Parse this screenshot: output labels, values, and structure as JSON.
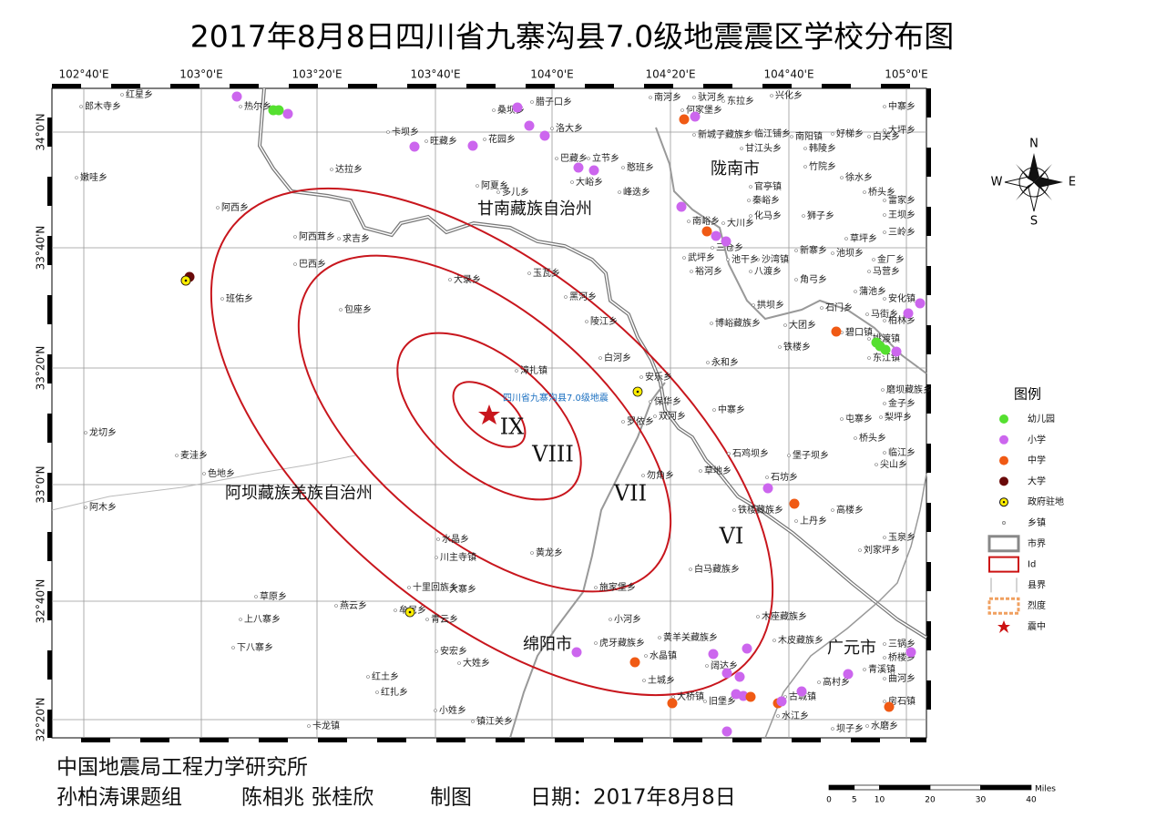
{
  "title": "2017年8月8日四川省九寨沟县7.0级地震震区学校分布图",
  "graticule": {
    "longitudes": [
      "102°40'E",
      "103°0'E",
      "103°20'E",
      "103°40'E",
      "104°0'E",
      "104°20'E",
      "104°40'E",
      "105°0'E"
    ],
    "latitudes": [
      "34°0'N",
      "33°40'N",
      "33°20'N",
      "33°0'N",
      "32°40'N",
      "32°20'N"
    ]
  },
  "regions": [
    "甘南藏族自治州",
    "陇南市",
    "阿坝藏族羌族自治州",
    "绵阳市",
    "广元市"
  ],
  "epicenter_label": "四川省九寨沟县7.0级地震",
  "intensity_labels": [
    "IX",
    "VIII",
    "VII",
    "VI"
  ],
  "towns": [
    "郎木寺乡",
    "红星乡",
    "热尔乡",
    "卡坝乡",
    "旺藏乡",
    "桑坝乡",
    "腊子口乡",
    "花园乡",
    "洛大乡",
    "巴藏乡",
    "立节乡",
    "憨班乡",
    "大峪乡",
    "达拉乡",
    "阿夏乡",
    "多儿乡",
    "峰迭乡",
    "南河乡",
    "何家堡乡",
    "新城子藏族乡",
    "临江铺乡",
    "甘江头乡",
    "南阳镇",
    "韩陵乡",
    "好梯乡",
    "白关乡",
    "驮河乡",
    "东拉乡",
    "兴化乡",
    "中寨乡",
    "大坪乡",
    "竹院乡",
    "徐水乡",
    "桥头乡",
    "官亭镇",
    "秦峪乡",
    "化马乡",
    "狮子乡",
    "南峪乡",
    "大川乡",
    "三仓乡",
    "沙湾镇",
    "新寨乡",
    "池坝乡",
    "草坪乡",
    "金厂乡",
    "马营乡",
    "武坪乡",
    "池干乡",
    "裕河乡",
    "八渡乡",
    "角弓乡",
    "蒲池乡",
    "雷家乡",
    "王坝乡",
    "三岭乡",
    "阿西乡",
    "阿西茸乡",
    "求吉乡",
    "巴西乡",
    "班佑乡",
    "嫩哇乡",
    "大录乡",
    "玉瓦乡",
    "包座乡",
    "黑河乡",
    "陵江乡",
    "石门乡",
    "马街乡",
    "安化镇",
    "柏林乡",
    "博峪藏族乡",
    "拱坝乡",
    "大团乡",
    "铁楼乡",
    "碧口镇",
    "姚渡镇",
    "东江镇",
    "白河乡",
    "永和乡",
    "漳扎镇",
    "安乐乡",
    "保华乡",
    "双河乡",
    "罗依乡",
    "磨坝藏族乡",
    "金子乡",
    "中寨乡",
    "屯寨乡",
    "梨坪乡",
    "勿角乡",
    "草地乡",
    "石鸡坝乡",
    "堡子坝乡",
    "桥头乡",
    "尖山乡",
    "临江乡",
    "石坊乡",
    "铁楼藏族乡",
    "上丹乡",
    "高楼乡",
    "刘家坪乡",
    "玉泉乡",
    "白马藏族乡",
    "黄龙乡",
    "施家堡乡",
    "小河乡",
    "木座藏族乡",
    "木皮藏族乡",
    "黄羊关藏族乡",
    "虎牙藏族乡",
    "水晶镇",
    "土城乡",
    "阔达乡",
    "大桥镇",
    "旧堡乡",
    "高村乡",
    "古城镇",
    "水江乡",
    "青溪镇",
    "三锅乡",
    "桥楼乡",
    "曲河乡",
    "房石镇",
    "坝子乡",
    "水磨乡",
    "龙切乡",
    "麦洼乡",
    "色地乡",
    "阿木乡",
    "水晶乡",
    "川主寺镇",
    "十里回族乡",
    "大寨乡",
    "草原乡",
    "上八寨乡",
    "下八寨乡",
    "燕云乡",
    "牟尼乡",
    "青云乡",
    "安宏乡",
    "大姓乡",
    "红土乡",
    "红扎乡",
    "小姓乡",
    "镇江关乡",
    "卡龙镇"
  ],
  "legend": {
    "title": "图例",
    "items": [
      {
        "label": "幼儿园",
        "color": "#55e030"
      },
      {
        "label": "小学",
        "color": "#cc66ee"
      },
      {
        "label": "中学",
        "color": "#f05a14"
      },
      {
        "label": "大学",
        "color": "#6a0a0a"
      },
      {
        "label": "政府驻地",
        "color": "#ffee00"
      },
      {
        "label": "乡镇",
        "color": "#888888"
      },
      {
        "label": "市界",
        "color": "#888888"
      },
      {
        "label": "Id",
        "color": "#cc1111"
      },
      {
        "label": "县界",
        "color": "#aaaaaa"
      },
      {
        "label": "烈度",
        "color": "#f0a060"
      },
      {
        "label": "震中",
        "color": "#cc1111"
      }
    ]
  },
  "compass": [
    "N",
    "S",
    "E",
    "W"
  ],
  "scale_bar": {
    "ticks": [
      0,
      5,
      10,
      20,
      30,
      40
    ],
    "unit": "Miles"
  },
  "footer": {
    "institution": "中国地震局工程力学研究所",
    "group": "孙柏涛课题组",
    "authors": "陈相兆 张桂欣",
    "role": "制图",
    "date": "日期：2017年8月8日"
  }
}
